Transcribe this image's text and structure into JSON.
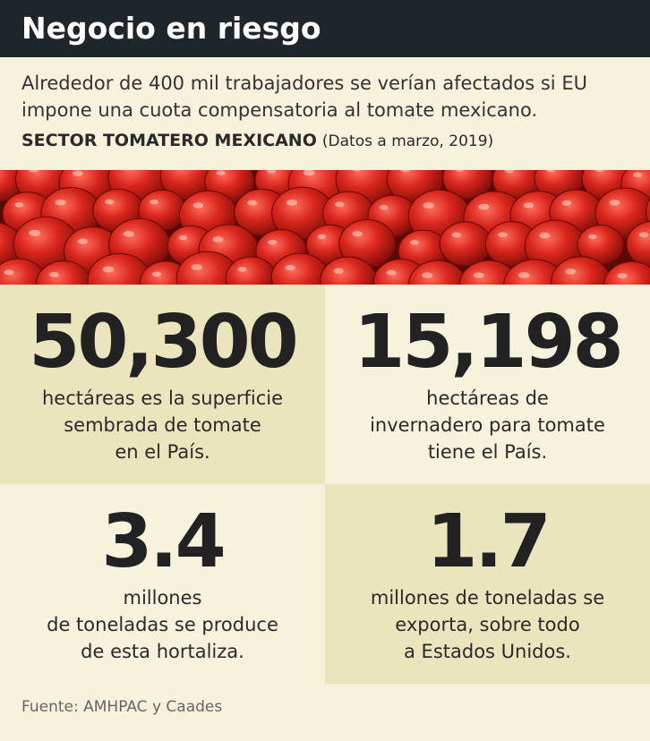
{
  "header": {
    "title": "Negocio en riesgo"
  },
  "subtitle": [
    "Alrededor de 400 mil trabajadores se verían afectados si EU",
    "impone una cuota compensatoria al tomate mexicano."
  ],
  "section": {
    "label": "SECTOR TOMATERO MEXICANO",
    "note": "(Datos a marzo, 2019)"
  },
  "stats": [
    {
      "value": "50,300",
      "lines": [
        "hectáreas es la superficie",
        "sembrada de tomate",
        "en el País."
      ]
    },
    {
      "value": "15,198",
      "lines": [
        "hectáreas de",
        "invernadero para tomate",
        "tiene el País."
      ]
    },
    {
      "value": "3.4",
      "lines": [
        "millones",
        "de toneladas se produce",
        "de esta hortaliza."
      ]
    },
    {
      "value": "1.7",
      "lines": [
        "millones de toneladas se",
        "exporta, sobre todo",
        "a Estados Unidos."
      ]
    }
  ],
  "source": "Fuente: AMHPAC y Caades"
}
